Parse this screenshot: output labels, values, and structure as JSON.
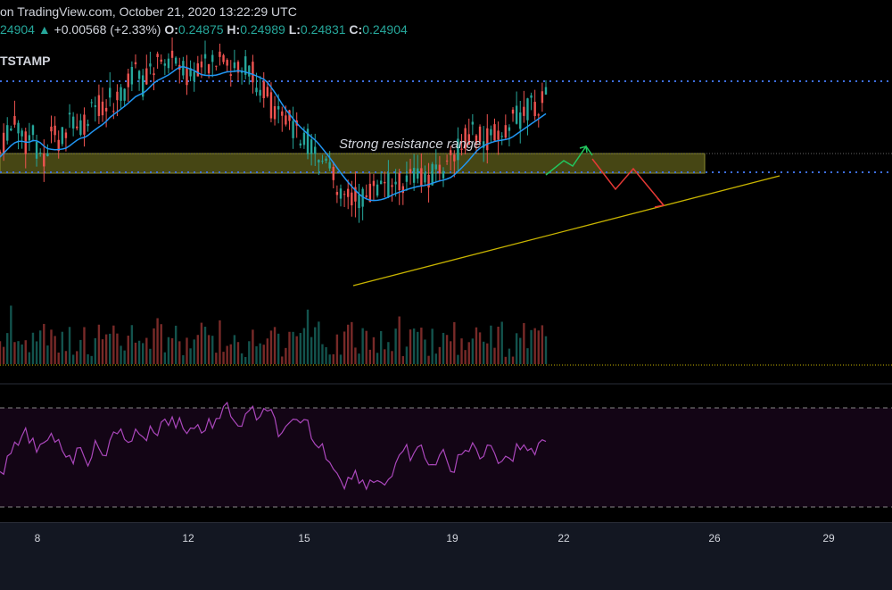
{
  "header": {
    "line1": "on TradingView.com, October 21, 2020 13:22:29 UTC",
    "price": "24904",
    "change": "+0.00568 (+2.33%)",
    "ohlc": [
      {
        "label": "O:",
        "value": "0.24875"
      },
      {
        "label": "H:",
        "value": "0.24989"
      },
      {
        "label": "L:",
        "value": "0.24831"
      },
      {
        "label": "C:",
        "value": "0.24904"
      }
    ],
    "exchange": "TSTAMP"
  },
  "annotation": "Strong resistance range",
  "x_axis": {
    "ticks": [
      "8",
      "12",
      "15",
      "19",
      "22",
      "26",
      "29"
    ]
  },
  "colors": {
    "up": "#26a69a",
    "down": "#ef5350",
    "ma": "#2196f3",
    "rsi": "#9c27b0",
    "zone": "#6b6b1e",
    "trendline": "#c8b400",
    "dotted": "#3d6ee0"
  },
  "chart_data": {
    "type": "candlestick",
    "symbol_suffix": "TSTAMP",
    "x_ticks": [
      "8",
      "12",
      "15",
      "19",
      "22",
      "26",
      "29"
    ],
    "last_ohlc": {
      "open": 0.24875,
      "high": 0.24989,
      "low": 0.24831,
      "close": 0.24904
    },
    "change": 0.00568,
    "change_pct": 2.33,
    "annotations": [
      "Strong resistance range"
    ],
    "indicators": [
      "moving-average",
      "volume",
      "rsi"
    ],
    "price_series": [
      150,
      165,
      180,
      175,
      160,
      170,
      150,
      140,
      170,
      160,
      175,
      180,
      170,
      175,
      190,
      200,
      205,
      210,
      200,
      215,
      230,
      240,
      220,
      235,
      250,
      245,
      260,
      250,
      255,
      240,
      230,
      235,
      245,
      255,
      250,
      245,
      235,
      250,
      245,
      240,
      230,
      220,
      205,
      190,
      180,
      185,
      175,
      170,
      160,
      150,
      140,
      130,
      120,
      110,
      105,
      100,
      95,
      100,
      105,
      110,
      112,
      115,
      113,
      118,
      120,
      122,
      118,
      125,
      130,
      128,
      135,
      150,
      160,
      170,
      175,
      160,
      165,
      170,
      175,
      180,
      185,
      190,
      195,
      200,
      205,
      210
    ]
  }
}
